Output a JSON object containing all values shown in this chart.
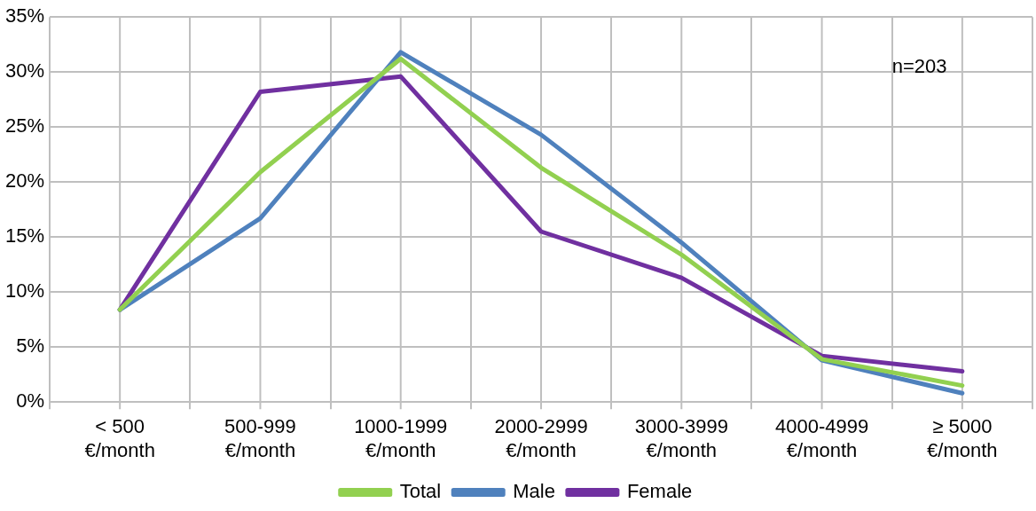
{
  "chart_data": {
    "type": "line",
    "categories": [
      "< 500\n€/month",
      "500-999\n€/month",
      "1000-1999\n€/month",
      "2000-2999\n€/month",
      "3000-3999\n€/month",
      "4000-4999\n€/month",
      "≥ 5000\n€/month"
    ],
    "series": [
      {
        "name": "Total",
        "color": "#92d050",
        "values": [
          8.4,
          20.9,
          31.2,
          21.3,
          13.4,
          3.9,
          1.5
        ]
      },
      {
        "name": "Male",
        "color": "#4f81bd",
        "values": [
          8.4,
          16.7,
          31.8,
          24.3,
          14.5,
          3.8,
          0.8
        ]
      },
      {
        "name": "Female",
        "color": "#7030a0",
        "values": [
          8.4,
          28.2,
          29.6,
          15.5,
          11.3,
          4.2,
          2.8
        ]
      }
    ],
    "ylim": [
      0,
      35
    ],
    "yticks": [
      {
        "value": 0,
        "label": "0%"
      },
      {
        "value": 5,
        "label": "5%"
      },
      {
        "value": 10,
        "label": "10%"
      },
      {
        "value": 15,
        "label": "15%"
      },
      {
        "value": 20,
        "label": "20%"
      },
      {
        "value": 25,
        "label": "25%"
      },
      {
        "value": 30,
        "label": "30%"
      },
      {
        "value": 35,
        "label": "35%"
      }
    ],
    "grid": true,
    "legend": "bottom",
    "marker": "none",
    "line_style": "solid",
    "annotations": [
      "n=203"
    ]
  }
}
